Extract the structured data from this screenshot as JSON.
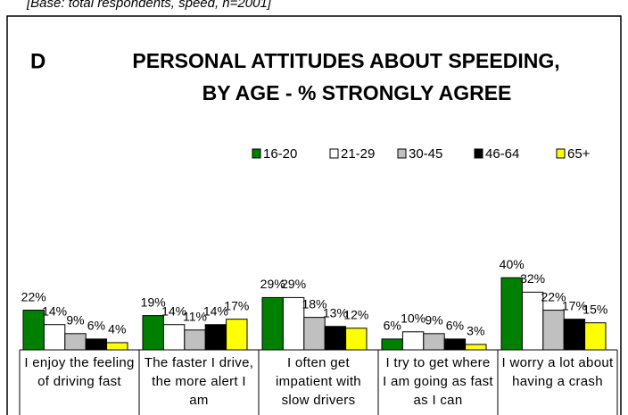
{
  "note": "[Base: total respondents, speed, n=2001]",
  "chart_data": {
    "type": "bar",
    "panel_label": "D",
    "title_lines": [
      "PERSONAL ATTITUDES ABOUT SPEEDING,",
      "BY AGE - % STRONGLY AGREE"
    ],
    "categories": [
      "I enjoy the feeling of driving fast",
      "The faster I drive, the more alert I am",
      "I often get impatient with slow drivers",
      "I try to get where I am going as fast as I can",
      "I worry a lot about having a crash"
    ],
    "series": [
      {
        "name": "16-20",
        "color": "#008000",
        "values": [
          22,
          19,
          29,
          6,
          40
        ],
        "value_labels": [
          "22%",
          "19%",
          "29%",
          "6%",
          "40%"
        ]
      },
      {
        "name": "21-29",
        "color": "#ffffff",
        "values": [
          14,
          14,
          29,
          10,
          32
        ],
        "value_labels": [
          "14%",
          "14%",
          "29%",
          "10%",
          "32%"
        ]
      },
      {
        "name": "30-45",
        "color": "#c0c0c0",
        "values": [
          9,
          11,
          18,
          9,
          22
        ],
        "value_labels": [
          "9%",
          "11%",
          "18%",
          "9%",
          "22%"
        ]
      },
      {
        "name": "46-64",
        "color": "#000000",
        "values": [
          6,
          14,
          13,
          6,
          17
        ],
        "value_labels": [
          "6%",
          "14%",
          "13%",
          "6%",
          "17%"
        ]
      },
      {
        "name": "65+",
        "color": "#ffff00",
        "values": [
          4,
          17,
          12,
          3,
          15
        ],
        "value_labels": [
          "4%",
          "17%",
          "12%",
          "3%",
          "15%"
        ]
      }
    ]
  }
}
